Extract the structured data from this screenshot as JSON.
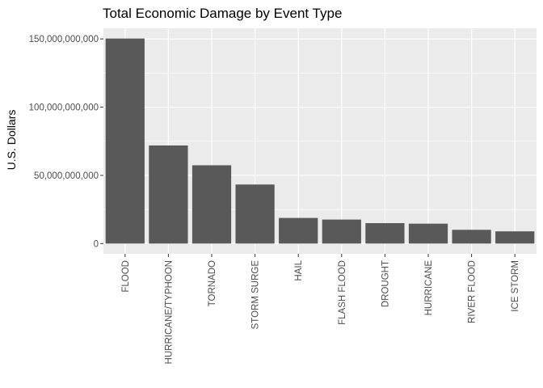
{
  "chart_data": {
    "type": "bar",
    "title": "Total Economic Damage by Event Type",
    "xlabel": "",
    "ylabel": "U.S. Dollars",
    "categories": [
      "FLOOD",
      "HURRICANE/TYPHOON",
      "TORNADO",
      "STORM SURGE",
      "HAIL",
      "FLASH FLOOD",
      "DROUGHT",
      "HURRICANE",
      "RIVER FLOOD",
      "ICE STORM"
    ],
    "values": [
      150300000000,
      71900000000,
      57400000000,
      43300000000,
      18800000000,
      17600000000,
      15000000000,
      14600000000,
      10100000000,
      8970000000
    ],
    "ylim": [
      -7500000000,
      157800000000
    ],
    "yticks": [
      0,
      50000000000,
      100000000000,
      150000000000
    ],
    "ytick_labels": [
      "0",
      "50,000,000,000",
      "100,000,000,000",
      "150,000,000,000"
    ],
    "grid": true,
    "legend": "none",
    "colors": {
      "panel": "#ebebeb",
      "grid_major": "#ffffff",
      "bar": "#595959",
      "tick_text": "#4d4d4d",
      "axis_ticks": "#333333"
    }
  }
}
